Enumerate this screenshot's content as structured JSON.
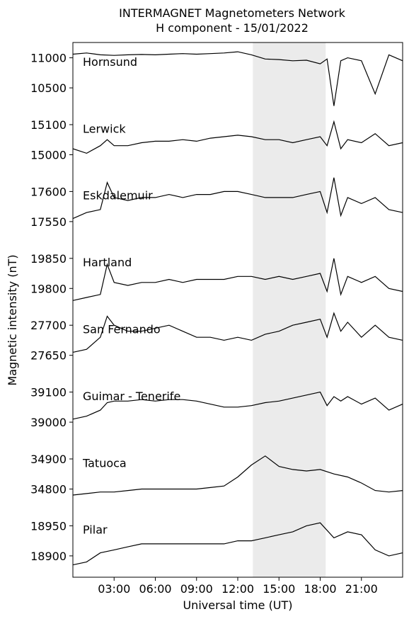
{
  "chart_data": {
    "type": "line",
    "title": "INTERMAGNET Magnetometers Network",
    "subtitle": "H component - 15/01/2022",
    "xlabel": "Universal time (UT)",
    "ylabel": "Magnetic intensity (nT)",
    "x_ticks": [
      "03:00",
      "06:00",
      "09:00",
      "12:00",
      "15:00",
      "18:00",
      "21:00"
    ],
    "x_tick_hours": [
      3,
      6,
      9,
      12,
      15,
      18,
      21
    ],
    "xlim_hours": [
      0,
      24
    ],
    "highlight_span_hours": [
      13.1,
      18.4
    ],
    "highlight_color": "#ebebeb",
    "line_color": "#000000",
    "grid": false,
    "series": [
      {
        "name": "Hornsund",
        "ticks": [
          "11000",
          "10500"
        ],
        "x": [
          0,
          1,
          2,
          3,
          4,
          5,
          6,
          7,
          8,
          9,
          10,
          11,
          12,
          13,
          14,
          15,
          16,
          17,
          18,
          18.5,
          19,
          19.5,
          20,
          21,
          22,
          23,
          24
        ],
        "values": [
          11060,
          11080,
          11050,
          11040,
          11050,
          11055,
          11050,
          11060,
          11070,
          11060,
          11070,
          11080,
          11100,
          11050,
          10980,
          10970,
          10950,
          10960,
          10900,
          10980,
          10200,
          10950,
          11000,
          10950,
          10400,
          11050,
          10950
        ]
      },
      {
        "name": "Lerwick",
        "ticks": [
          "15100",
          "15000"
        ],
        "x": [
          0,
          1,
          2,
          2.5,
          3,
          4,
          5,
          6,
          7,
          8,
          9,
          10,
          11,
          12,
          13,
          14,
          15,
          16,
          17,
          18,
          18.5,
          19,
          19.5,
          20,
          21,
          22,
          23,
          24
        ],
        "values": [
          15020,
          15005,
          15030,
          15050,
          15030,
          15030,
          15040,
          15045,
          15045,
          15050,
          15045,
          15055,
          15060,
          15065,
          15060,
          15050,
          15050,
          15040,
          15050,
          15060,
          15030,
          15110,
          15020,
          15050,
          15040,
          15070,
          15030,
          15040
        ]
      },
      {
        "name": "Eskdalemuir",
        "ticks": [
          "17600",
          "17550"
        ],
        "x": [
          0,
          1,
          2,
          2.5,
          3,
          4,
          5,
          6,
          7,
          8,
          9,
          10,
          11,
          12,
          13,
          14,
          15,
          16,
          17,
          18,
          18.5,
          19,
          19.5,
          20,
          21,
          22,
          23,
          24
        ],
        "values": [
          17555,
          17565,
          17570,
          17615,
          17590,
          17585,
          17590,
          17590,
          17595,
          17590,
          17595,
          17595,
          17600,
          17600,
          17595,
          17590,
          17590,
          17590,
          17595,
          17600,
          17565,
          17630,
          17560,
          17590,
          17580,
          17590,
          17570,
          17565
        ]
      },
      {
        "name": "Hartland",
        "ticks": [
          "19850",
          "19800"
        ],
        "x": [
          0,
          1,
          2,
          2.5,
          3,
          4,
          5,
          6,
          7,
          8,
          9,
          10,
          11,
          12,
          13,
          14,
          15,
          16,
          17,
          18,
          18.5,
          19,
          19.5,
          20,
          21,
          22,
          23,
          24
        ],
        "values": [
          19780,
          19785,
          19790,
          19840,
          19810,
          19805,
          19810,
          19810,
          19815,
          19810,
          19815,
          19815,
          19815,
          19820,
          19820,
          19815,
          19820,
          19815,
          19820,
          19825,
          19795,
          19850,
          19790,
          19820,
          19810,
          19820,
          19800,
          19795
        ]
      },
      {
        "name": "San Fernando",
        "ticks": [
          "27700",
          "27650"
        ],
        "x": [
          0,
          1,
          2,
          2.5,
          3,
          4,
          5,
          6,
          7,
          8,
          9,
          10,
          11,
          12,
          13,
          14,
          15,
          16,
          17,
          18,
          18.5,
          19,
          19.5,
          20,
          21,
          22,
          23,
          24
        ],
        "values": [
          27655,
          27660,
          27680,
          27715,
          27700,
          27690,
          27690,
          27695,
          27700,
          27690,
          27680,
          27680,
          27675,
          27680,
          27675,
          27685,
          27690,
          27700,
          27705,
          27710,
          27680,
          27720,
          27690,
          27705,
          27680,
          27700,
          27680,
          27675
        ]
      },
      {
        "name": "Guimar - Tenerife",
        "ticks": [
          "39100",
          "39000"
        ],
        "x": [
          0,
          1,
          2,
          2.5,
          3,
          4,
          5,
          6,
          7,
          8,
          9,
          10,
          11,
          12,
          13,
          14,
          15,
          16,
          17,
          18,
          18.5,
          19,
          19.5,
          20,
          21,
          22,
          23,
          24
        ],
        "values": [
          39010,
          39020,
          39040,
          39065,
          39070,
          39070,
          39075,
          39070,
          39075,
          39075,
          39070,
          39060,
          39050,
          39050,
          39055,
          39065,
          39070,
          39080,
          39090,
          39100,
          39055,
          39085,
          39070,
          39085,
          39060,
          39080,
          39040,
          39060
        ]
      },
      {
        "name": "Tatuoca",
        "ticks": [
          "34900",
          "34800"
        ],
        "x": [
          0,
          1,
          2,
          3,
          4,
          5,
          6,
          7,
          8,
          9,
          10,
          11,
          12,
          13,
          14,
          15,
          16,
          17,
          18,
          19,
          20,
          21,
          22,
          23,
          24
        ],
        "values": [
          34780,
          34785,
          34790,
          34790,
          34795,
          34800,
          34800,
          34800,
          34800,
          34800,
          34805,
          34810,
          34840,
          34880,
          34910,
          34875,
          34865,
          34860,
          34865,
          34850,
          34840,
          34820,
          34795,
          34790,
          34795
        ]
      },
      {
        "name": "Pilar",
        "ticks": [
          "18950",
          "18900"
        ],
        "x": [
          0,
          1,
          2,
          3,
          4,
          5,
          6,
          7,
          8,
          9,
          10,
          11,
          12,
          13,
          14,
          15,
          16,
          17,
          18,
          19,
          20,
          21,
          22,
          23,
          24
        ],
        "values": [
          18885,
          18890,
          18905,
          18910,
          18915,
          18920,
          18920,
          18920,
          18920,
          18920,
          18920,
          18920,
          18925,
          18925,
          18930,
          18935,
          18940,
          18950,
          18955,
          18930,
          18940,
          18935,
          18910,
          18900,
          18905
        ]
      }
    ]
  }
}
